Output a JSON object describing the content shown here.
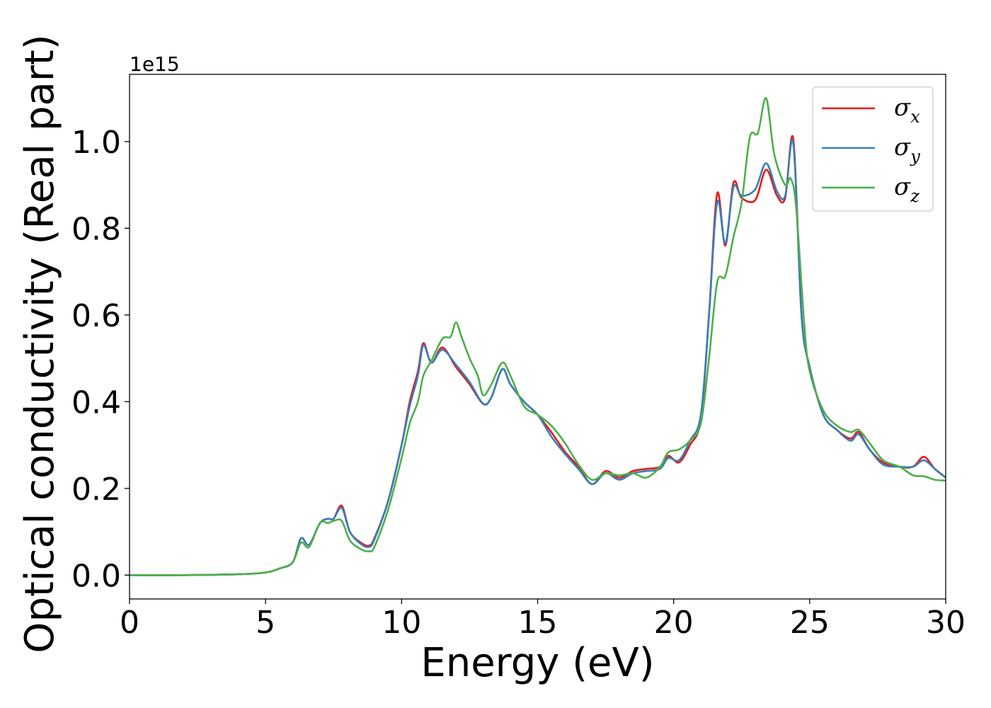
{
  "chart_data": {
    "type": "line",
    "title": "",
    "xlabel": "Energy (eV)",
    "ylabel": "Optical conductivity (Real part)",
    "y_offset_label": "1e15",
    "y_scale": 1000000000000000.0,
    "xlim": [
      0,
      30
    ],
    "ylim": [
      -0.055,
      1.155
    ],
    "xticks": [
      0,
      5,
      10,
      15,
      20,
      25,
      30
    ],
    "xtick_labels": [
      "0",
      "5",
      "10",
      "15",
      "20",
      "25",
      "30"
    ],
    "yticks": [
      0.0,
      0.2,
      0.4,
      0.6,
      0.8,
      1.0
    ],
    "ytick_labels": [
      "0.0",
      "0.2",
      "0.4",
      "0.6",
      "0.8",
      "1.0"
    ],
    "grid": false,
    "legend_position": "top-right",
    "series": [
      {
        "name": "σx",
        "label_base": "σ",
        "label_sub": "x",
        "color": "#e41a1c",
        "points": [
          [
            0,
            0.0
          ],
          [
            2,
            0.0
          ],
          [
            4,
            0.002
          ],
          [
            5,
            0.006
          ],
          [
            5.5,
            0.015
          ],
          [
            6,
            0.03
          ],
          [
            6.3,
            0.085
          ],
          [
            6.6,
            0.07
          ],
          [
            7,
            0.12
          ],
          [
            7.3,
            0.13
          ],
          [
            7.5,
            0.13
          ],
          [
            7.8,
            0.16
          ],
          [
            8.1,
            0.1
          ],
          [
            8.5,
            0.075
          ],
          [
            8.8,
            0.068
          ],
          [
            9,
            0.085
          ],
          [
            9.5,
            0.17
          ],
          [
            10,
            0.3
          ],
          [
            10.3,
            0.4
          ],
          [
            10.6,
            0.47
          ],
          [
            10.8,
            0.535
          ],
          [
            11.1,
            0.49
          ],
          [
            11.5,
            0.525
          ],
          [
            12,
            0.48
          ],
          [
            12.5,
            0.44
          ],
          [
            13,
            0.395
          ],
          [
            13.3,
            0.41
          ],
          [
            13.7,
            0.475
          ],
          [
            14,
            0.44
          ],
          [
            14.5,
            0.4
          ],
          [
            15,
            0.37
          ],
          [
            15.5,
            0.33
          ],
          [
            16,
            0.285
          ],
          [
            16.5,
            0.25
          ],
          [
            17,
            0.21
          ],
          [
            17.5,
            0.24
          ],
          [
            18,
            0.225
          ],
          [
            18.5,
            0.24
          ],
          [
            19,
            0.245
          ],
          [
            19.5,
            0.25
          ],
          [
            19.8,
            0.275
          ],
          [
            20.2,
            0.26
          ],
          [
            20.6,
            0.3
          ],
          [
            21,
            0.36
          ],
          [
            21.3,
            0.6
          ],
          [
            21.6,
            0.88
          ],
          [
            21.9,
            0.76
          ],
          [
            22.2,
            0.905
          ],
          [
            22.5,
            0.87
          ],
          [
            23,
            0.865
          ],
          [
            23.4,
            0.935
          ],
          [
            23.8,
            0.875
          ],
          [
            24.1,
            0.87
          ],
          [
            24.4,
            1.005
          ],
          [
            24.7,
            0.6
          ],
          [
            25,
            0.48
          ],
          [
            25.5,
            0.37
          ],
          [
            26,
            0.335
          ],
          [
            26.5,
            0.315
          ],
          [
            26.8,
            0.33
          ],
          [
            27.2,
            0.29
          ],
          [
            27.7,
            0.26
          ],
          [
            28.3,
            0.25
          ],
          [
            28.8,
            0.25
          ],
          [
            29.2,
            0.273
          ],
          [
            29.6,
            0.245
          ],
          [
            30,
            0.225
          ]
        ]
      },
      {
        "name": "σy",
        "label_base": "σ",
        "label_sub": "y",
        "color": "#377eb8",
        "points": [
          [
            0,
            0.0
          ],
          [
            2,
            0.0
          ],
          [
            4,
            0.002
          ],
          [
            5,
            0.006
          ],
          [
            5.5,
            0.015
          ],
          [
            6,
            0.03
          ],
          [
            6.3,
            0.085
          ],
          [
            6.6,
            0.07
          ],
          [
            7,
            0.12
          ],
          [
            7.3,
            0.13
          ],
          [
            7.5,
            0.13
          ],
          [
            7.8,
            0.155
          ],
          [
            8.1,
            0.1
          ],
          [
            8.5,
            0.072
          ],
          [
            8.8,
            0.065
          ],
          [
            9,
            0.082
          ],
          [
            9.5,
            0.17
          ],
          [
            10,
            0.3
          ],
          [
            10.3,
            0.39
          ],
          [
            10.6,
            0.46
          ],
          [
            10.8,
            0.53
          ],
          [
            11.1,
            0.49
          ],
          [
            11.5,
            0.52
          ],
          [
            12,
            0.485
          ],
          [
            12.5,
            0.445
          ],
          [
            13,
            0.395
          ],
          [
            13.3,
            0.41
          ],
          [
            13.7,
            0.475
          ],
          [
            14,
            0.44
          ],
          [
            14.5,
            0.4
          ],
          [
            15,
            0.37
          ],
          [
            15.5,
            0.32
          ],
          [
            16,
            0.28
          ],
          [
            16.5,
            0.245
          ],
          [
            17,
            0.21
          ],
          [
            17.5,
            0.235
          ],
          [
            18,
            0.22
          ],
          [
            18.5,
            0.235
          ],
          [
            19,
            0.24
          ],
          [
            19.5,
            0.245
          ],
          [
            19.8,
            0.27
          ],
          [
            20.2,
            0.265
          ],
          [
            20.6,
            0.31
          ],
          [
            21,
            0.37
          ],
          [
            21.3,
            0.6
          ],
          [
            21.6,
            0.86
          ],
          [
            21.9,
            0.765
          ],
          [
            22.2,
            0.895
          ],
          [
            22.5,
            0.875
          ],
          [
            23,
            0.89
          ],
          [
            23.4,
            0.95
          ],
          [
            23.8,
            0.885
          ],
          [
            24.1,
            0.875
          ],
          [
            24.4,
            0.995
          ],
          [
            24.7,
            0.6
          ],
          [
            25,
            0.48
          ],
          [
            25.5,
            0.37
          ],
          [
            26,
            0.335
          ],
          [
            26.5,
            0.31
          ],
          [
            26.8,
            0.325
          ],
          [
            27.2,
            0.29
          ],
          [
            27.7,
            0.255
          ],
          [
            28.3,
            0.25
          ],
          [
            28.8,
            0.25
          ],
          [
            29.2,
            0.265
          ],
          [
            29.6,
            0.245
          ],
          [
            30,
            0.225
          ]
        ]
      },
      {
        "name": "σz",
        "label_base": "σ",
        "label_sub": "z",
        "color": "#4daf4a",
        "points": [
          [
            0,
            0.0
          ],
          [
            2,
            0.0
          ],
          [
            4,
            0.002
          ],
          [
            5,
            0.006
          ],
          [
            5.5,
            0.015
          ],
          [
            6,
            0.03
          ],
          [
            6.3,
            0.075
          ],
          [
            6.6,
            0.065
          ],
          [
            7,
            0.12
          ],
          [
            7.3,
            0.12
          ],
          [
            7.5,
            0.125
          ],
          [
            7.8,
            0.125
          ],
          [
            8.1,
            0.08
          ],
          [
            8.5,
            0.06
          ],
          [
            8.8,
            0.055
          ],
          [
            9,
            0.065
          ],
          [
            9.5,
            0.15
          ],
          [
            10,
            0.27
          ],
          [
            10.3,
            0.35
          ],
          [
            10.6,
            0.4
          ],
          [
            10.8,
            0.46
          ],
          [
            11.1,
            0.495
          ],
          [
            11.5,
            0.545
          ],
          [
            11.8,
            0.55
          ],
          [
            12,
            0.583
          ],
          [
            12.2,
            0.55
          ],
          [
            12.5,
            0.5
          ],
          [
            12.8,
            0.46
          ],
          [
            13,
            0.415
          ],
          [
            13.3,
            0.44
          ],
          [
            13.7,
            0.49
          ],
          [
            14,
            0.46
          ],
          [
            14.5,
            0.39
          ],
          [
            15,
            0.37
          ],
          [
            15.5,
            0.345
          ],
          [
            16,
            0.305
          ],
          [
            16.5,
            0.255
          ],
          [
            17,
            0.22
          ],
          [
            17.5,
            0.235
          ],
          [
            18,
            0.23
          ],
          [
            18.5,
            0.235
          ],
          [
            19,
            0.225
          ],
          [
            19.5,
            0.25
          ],
          [
            19.8,
            0.283
          ],
          [
            20.2,
            0.29
          ],
          [
            20.6,
            0.31
          ],
          [
            21,
            0.35
          ],
          [
            21.3,
            0.5
          ],
          [
            21.6,
            0.675
          ],
          [
            21.9,
            0.69
          ],
          [
            22.2,
            0.78
          ],
          [
            22.5,
            0.86
          ],
          [
            22.8,
            1.01
          ],
          [
            23.1,
            1.02
          ],
          [
            23.4,
            1.1
          ],
          [
            23.7,
            0.97
          ],
          [
            24.1,
            0.9
          ],
          [
            24.3,
            0.915
          ],
          [
            24.5,
            0.85
          ],
          [
            24.8,
            0.58
          ],
          [
            25,
            0.47
          ],
          [
            25.5,
            0.38
          ],
          [
            26,
            0.345
          ],
          [
            26.5,
            0.33
          ],
          [
            26.8,
            0.335
          ],
          [
            27.2,
            0.305
          ],
          [
            27.7,
            0.265
          ],
          [
            28.3,
            0.25
          ],
          [
            28.8,
            0.23
          ],
          [
            29.2,
            0.228
          ],
          [
            29.6,
            0.22
          ],
          [
            30,
            0.218
          ]
        ]
      }
    ]
  }
}
